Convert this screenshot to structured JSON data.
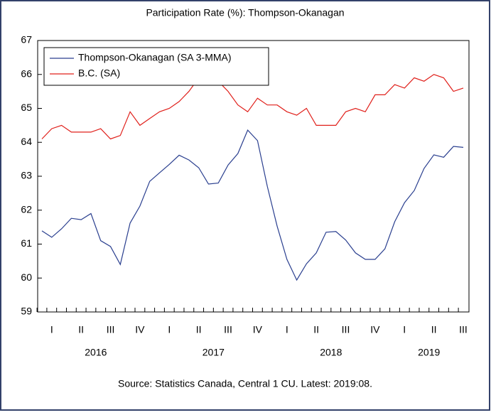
{
  "chart_data": {
    "type": "line",
    "title": "Participation Rate (%): Thompson-Okanagan",
    "source": "Source: Statistics Canada, Central 1 CU. Latest: 2019:08.",
    "categories": [
      null,
      "I",
      null,
      null,
      "II",
      null,
      null,
      "III",
      null,
      null,
      "IV",
      null,
      null,
      "I",
      null,
      null,
      "II",
      null,
      null,
      "III",
      null,
      null,
      "IV",
      null,
      null,
      "I",
      null,
      null,
      "II",
      null,
      null,
      "III",
      null,
      null,
      "IV",
      null,
      null,
      "I",
      null,
      null,
      "II",
      null,
      null,
      "III"
    ],
    "years": [
      "2016",
      "2017",
      "2018",
      "2019"
    ],
    "ylim": [
      59,
      67
    ],
    "yticks": [
      59,
      60,
      61,
      62,
      63,
      64,
      65,
      66,
      67
    ],
    "legend": "upper left",
    "series": [
      {
        "name": "Thompson-Okanagan (SA 3-MMA)",
        "color": "#2a3f8f",
        "values": [
          61.39,
          61.2,
          61.45,
          61.76,
          61.72,
          61.9,
          61.1,
          60.93,
          60.4,
          61.62,
          62.12,
          62.85,
          63.1,
          63.35,
          63.62,
          63.48,
          63.25,
          62.77,
          62.8,
          63.33,
          63.67,
          64.36,
          64.05,
          62.7,
          61.53,
          60.55,
          59.94,
          60.42,
          60.74,
          61.35,
          61.37,
          61.12,
          60.74,
          60.55,
          60.55,
          60.86,
          61.66,
          62.22,
          62.58,
          63.23,
          63.63,
          63.56,
          63.88,
          63.85
        ]
      },
      {
        "name": "B.C. (SA)",
        "color": "#e0201b",
        "values": [
          64.1,
          64.4,
          64.5,
          64.3,
          64.3,
          64.3,
          64.4,
          64.1,
          64.2,
          64.9,
          64.5,
          64.7,
          64.9,
          65.0,
          65.2,
          65.5,
          65.9,
          66.0,
          65.8,
          65.5,
          65.1,
          64.9,
          65.3,
          65.1,
          65.1,
          64.9,
          64.8,
          65.0,
          64.5,
          64.5,
          64.5,
          64.9,
          65.0,
          64.9,
          65.4,
          65.4,
          65.7,
          65.6,
          65.9,
          65.8,
          66.0,
          65.9,
          65.5,
          65.6
        ]
      }
    ]
  }
}
